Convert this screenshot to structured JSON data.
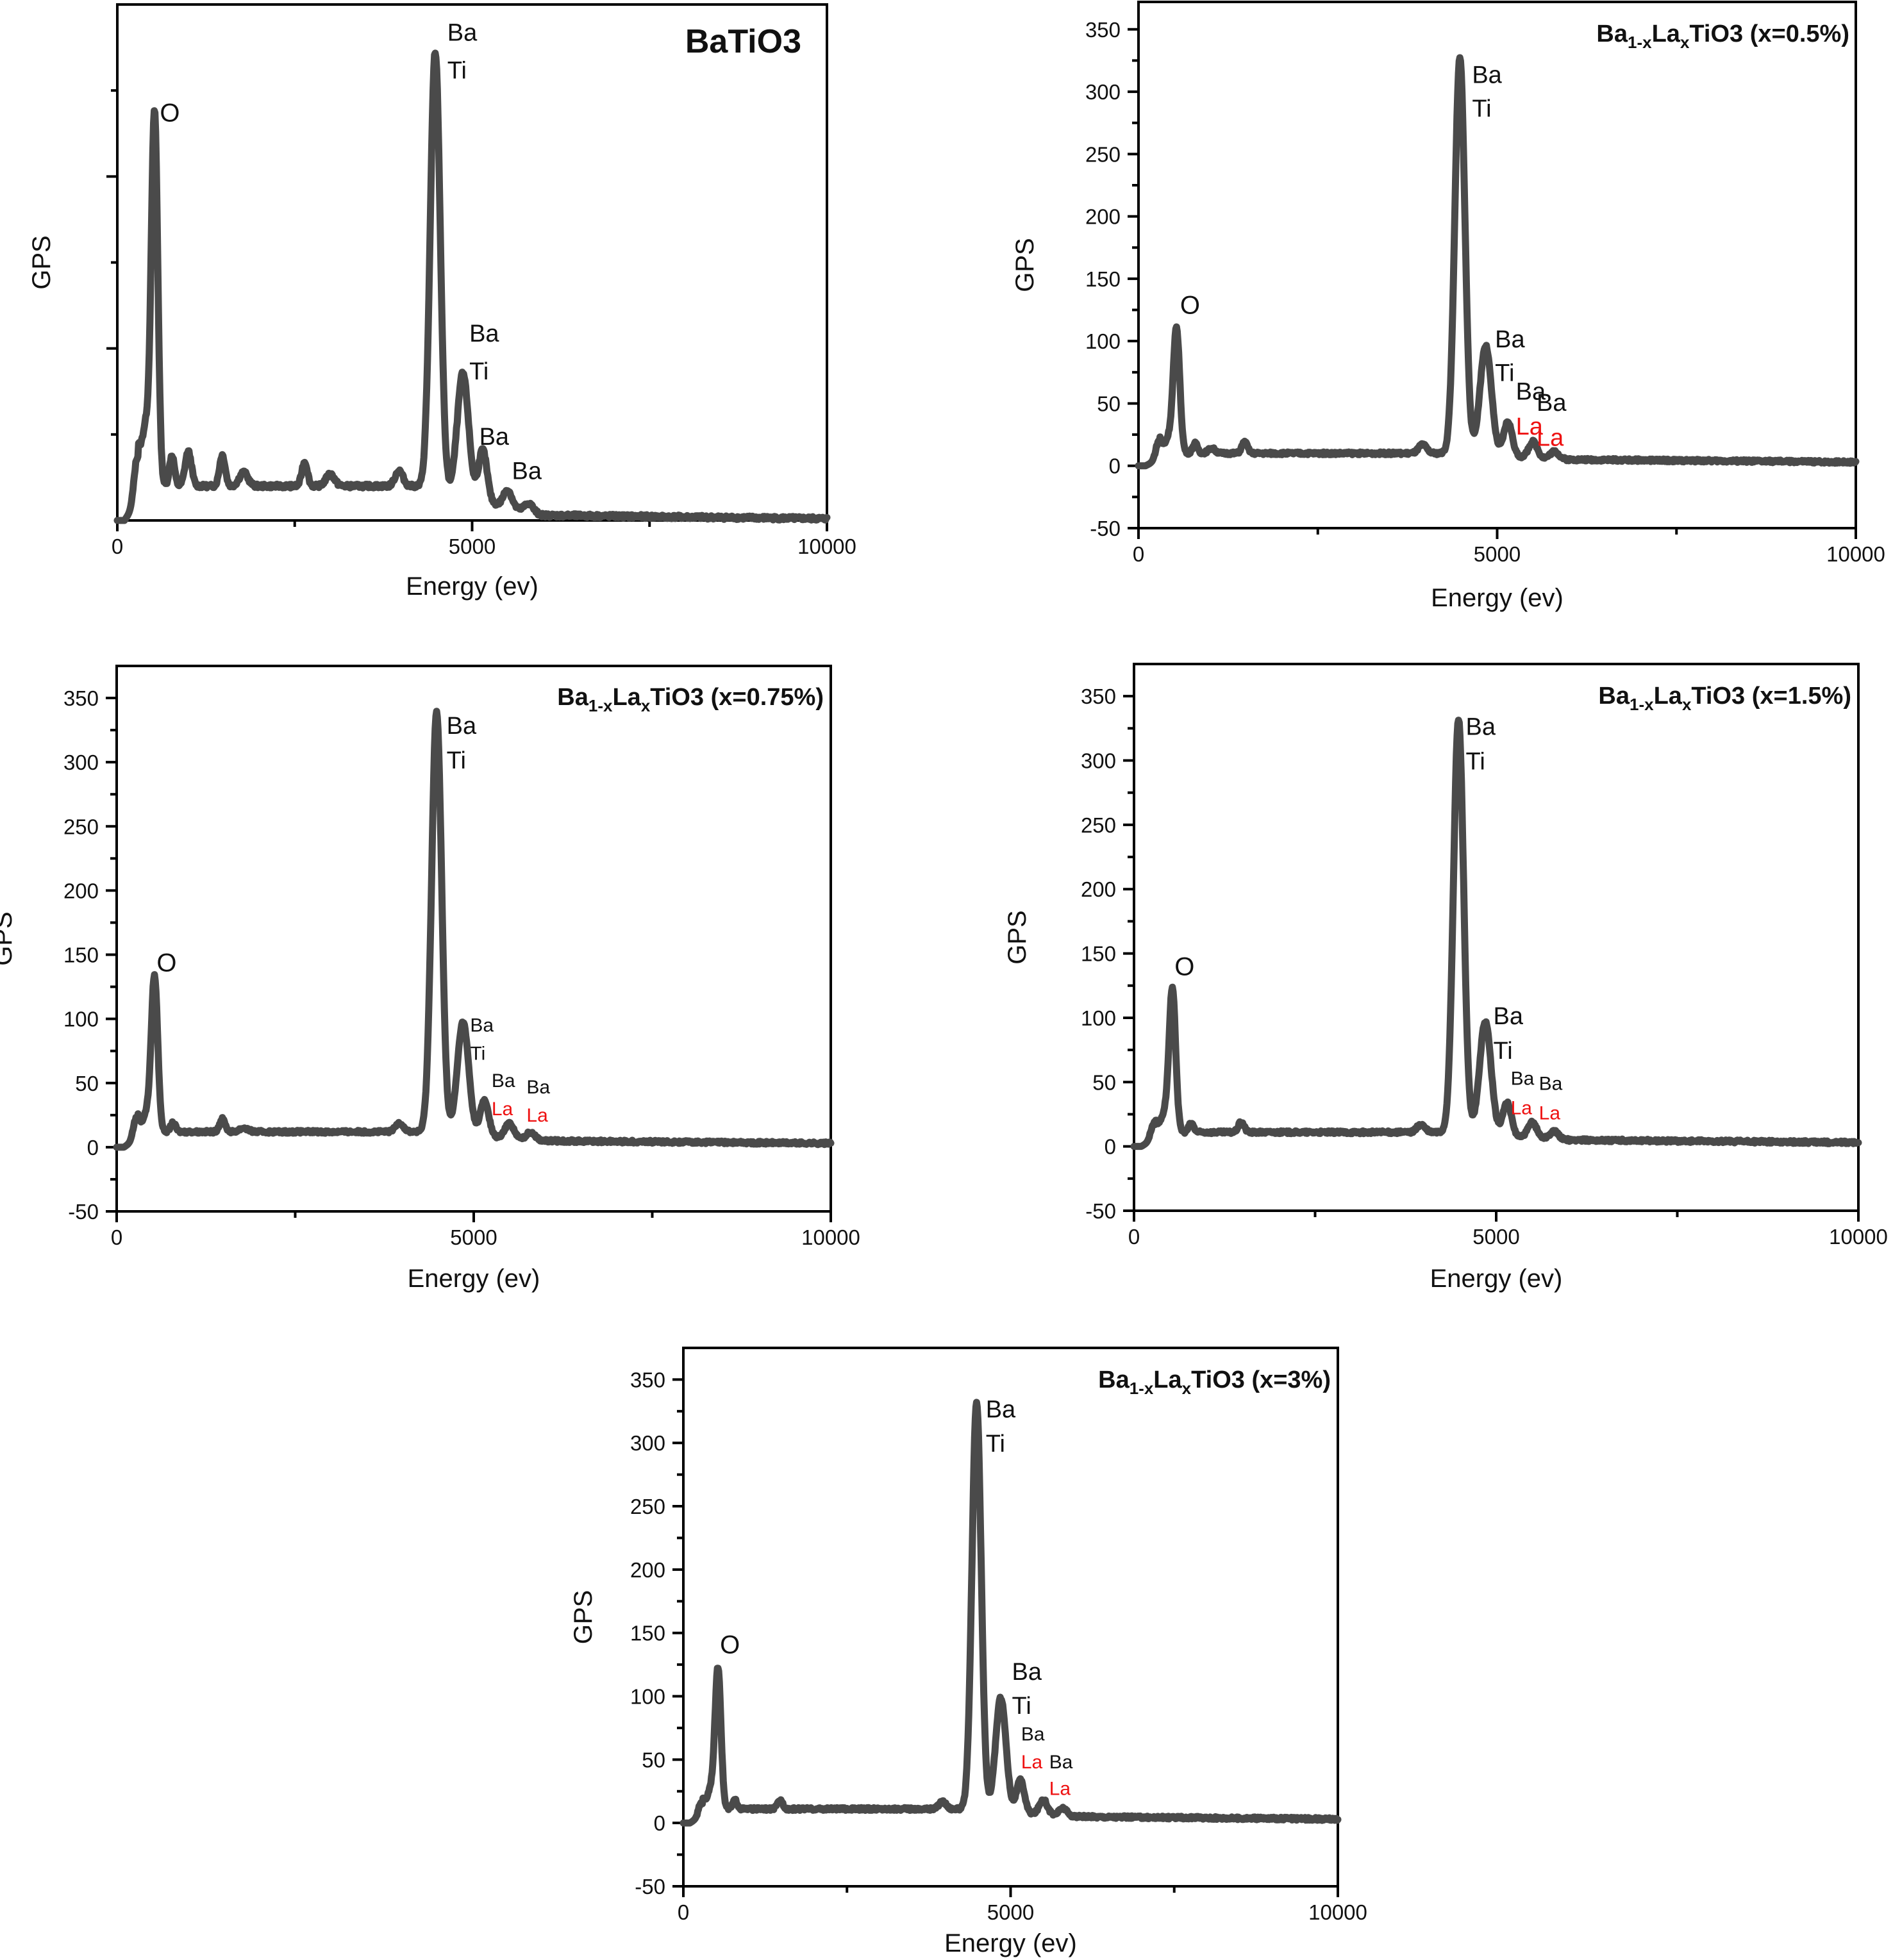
{
  "colors": {
    "line": "#4a4a4a",
    "axis": "#000000",
    "la_label": "#ee1111",
    "text": "#111111"
  },
  "chart_data": [
    {
      "id": "batio3",
      "type": "line",
      "title": "BaTiO3",
      "title_parts": [
        {
          "text": "BaTiO3",
          "sub": false
        }
      ],
      "xlabel": "Energy (ev)",
      "ylabel": "GPS",
      "xlim": [
        0,
        10000
      ],
      "ylim": [
        0,
        300
      ],
      "xticks": [
        0,
        5000,
        10000
      ],
      "xtick_labels": [
        "0",
        "5000",
        "10000"
      ],
      "yticks": [],
      "ytick_labels": [],
      "y_tick_labels_shown": false,
      "grid": false,
      "baseline": {
        "level": 20,
        "tail": 1
      },
      "peaks": [
        {
          "x": 270,
          "y": 22,
          "w": 40
        },
        {
          "x": 400,
          "y": 35,
          "w": 60
        },
        {
          "x": 525,
          "y": 215,
          "w": 45
        },
        {
          "x": 770,
          "y": 18,
          "w": 35
        },
        {
          "x": 1000,
          "y": 20,
          "w": 45
        },
        {
          "x": 1480,
          "y": 18,
          "w": 40
        },
        {
          "x": 1780,
          "y": 8,
          "w": 60
        },
        {
          "x": 2640,
          "y": 14,
          "w": 40
        },
        {
          "x": 3000,
          "y": 7,
          "w": 60
        },
        {
          "x": 3970,
          "y": 9,
          "w": 55
        },
        {
          "x": 4480,
          "y": 255,
          "w": 70
        },
        {
          "x": 4870,
          "y": 72,
          "w": 80
        },
        {
          "x": 5150,
          "y": 30,
          "w": 60
        },
        {
          "x": 5500,
          "y": 10,
          "w": 60
        },
        {
          "x": 5800,
          "y": 5,
          "w": 60
        }
      ],
      "annotations": [
        {
          "text": "O",
          "x": 600,
          "y": 232,
          "color": "black",
          "size": "large"
        },
        {
          "text": "Ba",
          "x": 4650,
          "y": 279,
          "color": "black",
          "size": "normal"
        },
        {
          "text": "Ti",
          "x": 4650,
          "y": 257,
          "color": "black",
          "size": "normal"
        },
        {
          "text": "Ba",
          "x": 4960,
          "y": 104,
          "color": "black",
          "size": "normal"
        },
        {
          "text": "Ti",
          "x": 4960,
          "y": 82,
          "color": "black",
          "size": "normal"
        },
        {
          "text": "Ba",
          "x": 5100,
          "y": 44,
          "color": "black",
          "size": "normal"
        },
        {
          "text": "Ba",
          "x": 5560,
          "y": 24,
          "color": "black",
          "size": "normal"
        }
      ]
    },
    {
      "id": "x05",
      "type": "line",
      "title": "Ba1-xLaxTiO3 (x=0.5%)",
      "title_parts": [
        {
          "text": "Ba",
          "sub": false
        },
        {
          "text": "1-x",
          "sub": true
        },
        {
          "text": "La",
          "sub": false
        },
        {
          "text": "x",
          "sub": true
        },
        {
          "text": "TiO3 (x=0.5%)",
          "sub": false
        }
      ],
      "xlabel": "Energy (ev)",
      "ylabel": "GPS",
      "xlim": [
        0,
        10000
      ],
      "ylim": [
        -50,
        372
      ],
      "xticks": [
        0,
        5000,
        10000
      ],
      "xtick_labels": [
        "0",
        "5000",
        "10000"
      ],
      "yticks": [
        -50,
        0,
        50,
        100,
        150,
        200,
        250,
        300,
        350
      ],
      "ytick_labels": [
        "-50",
        "0",
        "50",
        "100",
        "150",
        "200",
        "250",
        "300",
        "350"
      ],
      "y_tick_labels_shown": true,
      "grid": false,
      "baseline": {
        "level": 10,
        "tail": 3
      },
      "peaks": [
        {
          "x": 280,
          "y": 14,
          "w": 40
        },
        {
          "x": 420,
          "y": 12,
          "w": 50
        },
        {
          "x": 530,
          "y": 100,
          "w": 45
        },
        {
          "x": 790,
          "y": 8,
          "w": 35
        },
        {
          "x": 1020,
          "y": 4,
          "w": 50
        },
        {
          "x": 1480,
          "y": 9,
          "w": 40
        },
        {
          "x": 3960,
          "y": 7,
          "w": 55
        },
        {
          "x": 4480,
          "y": 318,
          "w": 70
        },
        {
          "x": 4840,
          "y": 88,
          "w": 80
        },
        {
          "x": 5150,
          "y": 28,
          "w": 60
        },
        {
          "x": 5500,
          "y": 13,
          "w": 60
        },
        {
          "x": 5800,
          "y": 6,
          "w": 60
        }
      ],
      "annotations": [
        {
          "text": "O",
          "x": 580,
          "y": 122,
          "color": "black",
          "size": "large"
        },
        {
          "text": "Ba",
          "x": 4650,
          "y": 307,
          "color": "black",
          "size": "normal"
        },
        {
          "text": "Ti",
          "x": 4650,
          "y": 280,
          "color": "black",
          "size": "normal"
        },
        {
          "text": "Ba",
          "x": 4970,
          "y": 95,
          "color": "black",
          "size": "normal"
        },
        {
          "text": "Ti",
          "x": 4970,
          "y": 68,
          "color": "black",
          "size": "normal"
        },
        {
          "text": "Ba",
          "x": 5260,
          "y": 53,
          "color": "black",
          "size": "normal"
        },
        {
          "text": "Ba",
          "x": 5550,
          "y": 44,
          "color": "black",
          "size": "normal"
        },
        {
          "text": "La",
          "x": 5260,
          "y": 25,
          "color": "red",
          "size": "normal"
        },
        {
          "text": "La",
          "x": 5550,
          "y": 16,
          "color": "red",
          "size": "normal"
        }
      ]
    },
    {
      "id": "x075",
      "type": "line",
      "title": "Ba1-xLaxTiO3 (x=0.75%)",
      "title_parts": [
        {
          "text": "Ba",
          "sub": false
        },
        {
          "text": "1-x",
          "sub": true
        },
        {
          "text": "La",
          "sub": false
        },
        {
          "text": "x",
          "sub": true
        },
        {
          "text": "TiO3 (x=0.75%)",
          "sub": false
        }
      ],
      "xlabel": "Energy (ev)",
      "ylabel": "GPS",
      "xlim": [
        0,
        10000
      ],
      "ylim": [
        -50,
        375
      ],
      "xticks": [
        0,
        5000,
        10000
      ],
      "xtick_labels": [
        "0",
        "5000",
        "10000"
      ],
      "yticks": [
        -50,
        0,
        50,
        100,
        150,
        200,
        250,
        300,
        350
      ],
      "ytick_labels": [
        "-50",
        "0",
        "50",
        "100",
        "150",
        "200",
        "250",
        "300",
        "350"
      ],
      "y_tick_labels_shown": true,
      "grid": false,
      "baseline": {
        "level": 12,
        "tail": 3
      },
      "peaks": [
        {
          "x": 270,
          "y": 16,
          "w": 40
        },
        {
          "x": 420,
          "y": 14,
          "w": 55
        },
        {
          "x": 530,
          "y": 120,
          "w": 45
        },
        {
          "x": 790,
          "y": 7,
          "w": 35
        },
        {
          "x": 1480,
          "y": 10,
          "w": 40
        },
        {
          "x": 1780,
          "y": 3,
          "w": 60
        },
        {
          "x": 3960,
          "y": 7,
          "w": 55
        },
        {
          "x": 4480,
          "y": 328,
          "w": 70
        },
        {
          "x": 4850,
          "y": 88,
          "w": 80
        },
        {
          "x": 5150,
          "y": 28,
          "w": 60
        },
        {
          "x": 5500,
          "y": 12,
          "w": 60
        },
        {
          "x": 5800,
          "y": 6,
          "w": 60
        }
      ],
      "annotations": [
        {
          "text": "O",
          "x": 560,
          "y": 137,
          "color": "black",
          "size": "large"
        },
        {
          "text": "Ba",
          "x": 4620,
          "y": 322,
          "color": "black",
          "size": "normal"
        },
        {
          "text": "Ti",
          "x": 4620,
          "y": 295,
          "color": "black",
          "size": "normal"
        },
        {
          "text": "Ba",
          "x": 4950,
          "y": 90,
          "color": "black",
          "size": "small"
        },
        {
          "text": "Ti",
          "x": 4950,
          "y": 68,
          "color": "black",
          "size": "small"
        },
        {
          "text": "Ba",
          "x": 5250,
          "y": 47,
          "color": "black",
          "size": "small"
        },
        {
          "text": "Ba",
          "x": 5740,
          "y": 42,
          "color": "black",
          "size": "small"
        },
        {
          "text": "La",
          "x": 5250,
          "y": 25,
          "color": "red",
          "size": "small"
        },
        {
          "text": "La",
          "x": 5740,
          "y": 20,
          "color": "red",
          "size": "small"
        }
      ]
    },
    {
      "id": "x15",
      "type": "line",
      "title": "Ba1-xLaxTiO3 (x=1.5%)",
      "title_parts": [
        {
          "text": "Ba",
          "sub": false
        },
        {
          "text": "1-x",
          "sub": true
        },
        {
          "text": "La",
          "sub": false
        },
        {
          "text": "x",
          "sub": true
        },
        {
          "text": "TiO3 (x=1.5%)",
          "sub": false
        }
      ],
      "xlabel": "Energy (ev)",
      "ylabel": "GPS",
      "xlim": [
        0,
        10000
      ],
      "ylim": [
        -50,
        375
      ],
      "xticks": [
        0,
        5000,
        10000
      ],
      "xtick_labels": [
        "0",
        "5000",
        "10000"
      ],
      "yticks": [
        -50,
        0,
        50,
        100,
        150,
        200,
        250,
        300,
        350
      ],
      "ytick_labels": [
        "-50",
        "0",
        "50",
        "100",
        "150",
        "200",
        "250",
        "300",
        "350"
      ],
      "y_tick_labels_shown": true,
      "grid": false,
      "baseline": {
        "level": 11,
        "tail": 3
      },
      "peaks": [
        {
          "x": 270,
          "y": 12,
          "w": 40
        },
        {
          "x": 420,
          "y": 14,
          "w": 55
        },
        {
          "x": 530,
          "y": 110,
          "w": 45
        },
        {
          "x": 790,
          "y": 7,
          "w": 35
        },
        {
          "x": 1480,
          "y": 8,
          "w": 40
        },
        {
          "x": 3960,
          "y": 6,
          "w": 55
        },
        {
          "x": 4480,
          "y": 322,
          "w": 70
        },
        {
          "x": 4850,
          "y": 88,
          "w": 80
        },
        {
          "x": 5150,
          "y": 26,
          "w": 60
        },
        {
          "x": 5500,
          "y": 12,
          "w": 60
        },
        {
          "x": 5800,
          "y": 6,
          "w": 60
        }
      ],
      "annotations": [
        {
          "text": "O",
          "x": 560,
          "y": 133,
          "color": "black",
          "size": "large"
        },
        {
          "text": "Ba",
          "x": 4580,
          "y": 320,
          "color": "black",
          "size": "normal"
        },
        {
          "text": "Ti",
          "x": 4580,
          "y": 293,
          "color": "black",
          "size": "normal"
        },
        {
          "text": "Ba",
          "x": 4960,
          "y": 95,
          "color": "black",
          "size": "normal"
        },
        {
          "text": "Ti",
          "x": 4960,
          "y": 68,
          "color": "black",
          "size": "normal"
        },
        {
          "text": "Ba",
          "x": 5200,
          "y": 48,
          "color": "black",
          "size": "small"
        },
        {
          "text": "Ba",
          "x": 5590,
          "y": 44,
          "color": "black",
          "size": "small"
        },
        {
          "text": "La",
          "x": 5200,
          "y": 25,
          "color": "red",
          "size": "small"
        },
        {
          "text": "La",
          "x": 5590,
          "y": 21,
          "color": "red",
          "size": "small"
        }
      ]
    },
    {
      "id": "x3",
      "type": "line",
      "title": "Ba1-xLaxTiO3 (x=3%)",
      "title_parts": [
        {
          "text": "Ba",
          "sub": false
        },
        {
          "text": "1-x",
          "sub": true
        },
        {
          "text": "La",
          "sub": false
        },
        {
          "text": "x",
          "sub": true
        },
        {
          "text": "TiO3 (x=3%)",
          "sub": false
        }
      ],
      "xlabel": "Energy (ev)",
      "ylabel": "GPS",
      "xlim": [
        0,
        10000
      ],
      "ylim": [
        -50,
        375
      ],
      "xticks": [
        0,
        5000,
        10000
      ],
      "xtick_labels": [
        "0",
        "5000",
        "10000"
      ],
      "yticks": [
        -50,
        0,
        50,
        100,
        150,
        200,
        250,
        300,
        350
      ],
      "ytick_labels": [
        "-50",
        "0",
        "50",
        "100",
        "150",
        "200",
        "250",
        "300",
        "350"
      ],
      "y_tick_labels_shown": true,
      "grid": false,
      "baseline": {
        "level": 11,
        "tail": 3
      },
      "peaks": [
        {
          "x": 270,
          "y": 10,
          "w": 40
        },
        {
          "x": 420,
          "y": 16,
          "w": 55
        },
        {
          "x": 530,
          "y": 110,
          "w": 45
        },
        {
          "x": 790,
          "y": 7,
          "w": 35
        },
        {
          "x": 1480,
          "y": 7,
          "w": 40
        },
        {
          "x": 3960,
          "y": 6,
          "w": 55
        },
        {
          "x": 4480,
          "y": 322,
          "w": 70
        },
        {
          "x": 4850,
          "y": 90,
          "w": 80
        },
        {
          "x": 5150,
          "y": 26,
          "w": 60
        },
        {
          "x": 5500,
          "y": 12,
          "w": 60
        },
        {
          "x": 5800,
          "y": 6,
          "w": 60
        }
      ],
      "annotations": [
        {
          "text": "O",
          "x": 560,
          "y": 134,
          "color": "black",
          "size": "large"
        },
        {
          "text": "Ba",
          "x": 4620,
          "y": 320,
          "color": "black",
          "size": "normal"
        },
        {
          "text": "Ti",
          "x": 4620,
          "y": 293,
          "color": "black",
          "size": "normal"
        },
        {
          "text": "Ba",
          "x": 5020,
          "y": 113,
          "color": "black",
          "size": "normal"
        },
        {
          "text": "Ti",
          "x": 5020,
          "y": 86,
          "color": "black",
          "size": "normal"
        },
        {
          "text": "Ba",
          "x": 5160,
          "y": 65,
          "color": "black",
          "size": "small"
        },
        {
          "text": "La",
          "x": 5160,
          "y": 43,
          "color": "red",
          "size": "small"
        },
        {
          "text": "Ba",
          "x": 5590,
          "y": 43,
          "color": "black",
          "size": "small"
        },
        {
          "text": "La",
          "x": 5590,
          "y": 22,
          "color": "red",
          "size": "small"
        }
      ]
    }
  ]
}
